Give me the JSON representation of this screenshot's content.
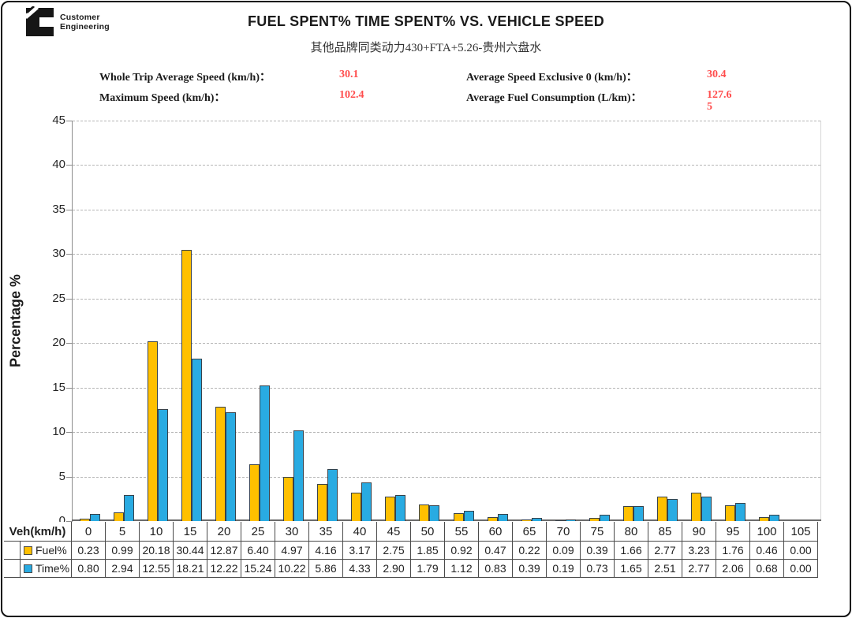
{
  "logo": {
    "line1": "Customer",
    "line2": "Engineering"
  },
  "title": "FUEL SPENT% TIME SPENT% VS. VEHICLE SPEED",
  "subtitle": "其他品牌同类动力430+FTA+5.26-贵州六盘水",
  "stats": [
    {
      "label": "Whole Trip Average Speed (km/h)：",
      "value": "30.1"
    },
    {
      "label": "Average Speed Exclusive 0 (km/h)：",
      "value": "30.4"
    },
    {
      "label": "Maximum Speed (km/h)：",
      "value": "102.4"
    },
    {
      "label": "Average Fuel Consumption (L/km)：",
      "value": "127.65"
    }
  ],
  "colors": {
    "fuel": "#FFC000",
    "time": "#29ABE2",
    "stat_value_red": "#FF4D4D",
    "gridline": "#b5b5b5",
    "bar_border": "#39424a"
  },
  "chart_data": {
    "type": "bar",
    "title": "FUEL SPENT% TIME SPENT% VS. VEHICLE SPEED",
    "subtitle": "其他品牌同类动力430+FTA+5.26-贵州六盘水",
    "xlabel": "Veh(km/h)",
    "ylabel": "Percentage %",
    "ylim": [
      0,
      45
    ],
    "ytick_step": 5,
    "grid": true,
    "legend_position": "table-left",
    "categories": [
      0,
      5,
      10,
      15,
      20,
      25,
      30,
      35,
      40,
      45,
      50,
      55,
      60,
      65,
      70,
      75,
      80,
      85,
      90,
      95,
      100,
      105
    ],
    "series": [
      {
        "name": "Fuel%",
        "color": "#FFC000",
        "values": [
          0.23,
          0.99,
          20.18,
          30.44,
          12.87,
          6.4,
          4.97,
          4.16,
          3.17,
          2.75,
          1.85,
          0.92,
          0.47,
          0.22,
          0.09,
          0.39,
          1.66,
          2.77,
          3.23,
          1.76,
          0.46,
          0.0
        ]
      },
      {
        "name": "Time%",
        "color": "#29ABE2",
        "values": [
          0.8,
          2.94,
          12.55,
          18.21,
          12.22,
          15.24,
          10.22,
          5.86,
          4.33,
          2.9,
          1.79,
          1.12,
          0.83,
          0.39,
          0.19,
          0.73,
          1.65,
          2.51,
          2.77,
          2.06,
          0.68,
          0.0
        ]
      }
    ]
  }
}
